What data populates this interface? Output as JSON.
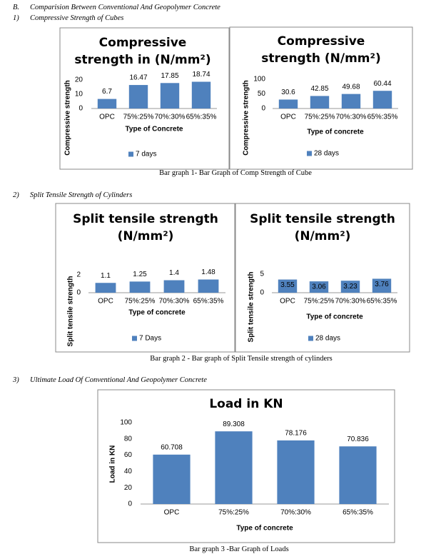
{
  "headings": [
    {
      "marker": "B.",
      "text": "Comparision Between Conventional And Geopolymer Concrete"
    },
    {
      "marker": "1)",
      "text": "Compressive Strength of Cubes"
    },
    {
      "marker": "2)",
      "text": "Split Tensile Strength of Cylinders"
    },
    {
      "marker": "3)",
      "text": "Ultimate Load Of Conventional And Geopolymer Concrete"
    }
  ],
  "captions": [
    "Bar graph 1- Bar Graph of Comp Strength of Cube",
    "Bar graph 2 -  Bar graph of Split Tensile strength of cylinders",
    "Bar graph 3 -Bar Graph of Loads"
  ],
  "chart_data": [
    {
      "type": "bar",
      "title": "Compressive strength in (N/mm²)",
      "y_label": "Compressive strength",
      "x_label": "Type of Concrete",
      "categories": [
        "OPC",
        "75%:25%",
        "70%:30%",
        "65%:35%"
      ],
      "series": [
        {
          "name": "7 days",
          "color": "#4f81bd",
          "values": [
            6.7,
            16.47,
            17.85,
            18.74
          ]
        }
      ],
      "ylim": [
        0,
        20
      ],
      "yticks": [
        0,
        10,
        20
      ],
      "grid": false,
      "legend": "bottom"
    },
    {
      "type": "bar",
      "title": "Compressive strength (N/mm²)",
      "y_label": "Compressive strength",
      "x_label": "Type of concrete",
      "categories": [
        "OPC",
        "75%:25%",
        "70%:30%",
        "65%:35%"
      ],
      "series": [
        {
          "name": "28 days",
          "color": "#4f81bd",
          "values": [
            30.6,
            42.85,
            49.68,
            60.44
          ]
        }
      ],
      "ylim": [
        0,
        100
      ],
      "yticks": [
        0,
        50,
        100
      ],
      "grid": false,
      "legend": "bottom"
    },
    {
      "type": "bar",
      "title": "Split tensile strength (N/mm²)",
      "y_label": "Split tensile strength",
      "x_label": "Type of concrete",
      "categories": [
        "OPC",
        "75%:25%",
        "70%:30%",
        "65%:35%"
      ],
      "series": [
        {
          "name": "7 Days",
          "color": "#4f81bd",
          "values": [
            1.1,
            1.25,
            1.4,
            1.48
          ]
        }
      ],
      "ylim": [
        0,
        2
      ],
      "yticks": [
        0,
        2
      ],
      "grid": false,
      "legend": "bottom"
    },
    {
      "type": "bar",
      "title": "Split tensile strength (N/mm²)",
      "y_label": "Split tensile strength",
      "x_label": "Type of concrete",
      "categories": [
        "OPC",
        "75%:25%",
        "70%:30%",
        "65%:35%"
      ],
      "series": [
        {
          "name": "28 days",
          "color": "#4f81bd",
          "values": [
            3.55,
            3.06,
            3.23,
            3.76
          ]
        }
      ],
      "ylim": [
        0,
        5
      ],
      "yticks": [
        0,
        5
      ],
      "grid": false,
      "legend": "bottom"
    },
    {
      "type": "bar",
      "title": "Load in KN",
      "y_label": "Load in KN",
      "x_label": "Type of concrete",
      "categories": [
        "OPC",
        "75%:25%",
        "70%:30%",
        "65%:35%"
      ],
      "values": [
        60.708,
        89.308,
        78.176,
        70.836
      ],
      "color": "#4f81bd",
      "ylim": [
        0,
        100
      ],
      "yticks": [
        0,
        20,
        40,
        60,
        80,
        100
      ],
      "grid": false
    }
  ]
}
